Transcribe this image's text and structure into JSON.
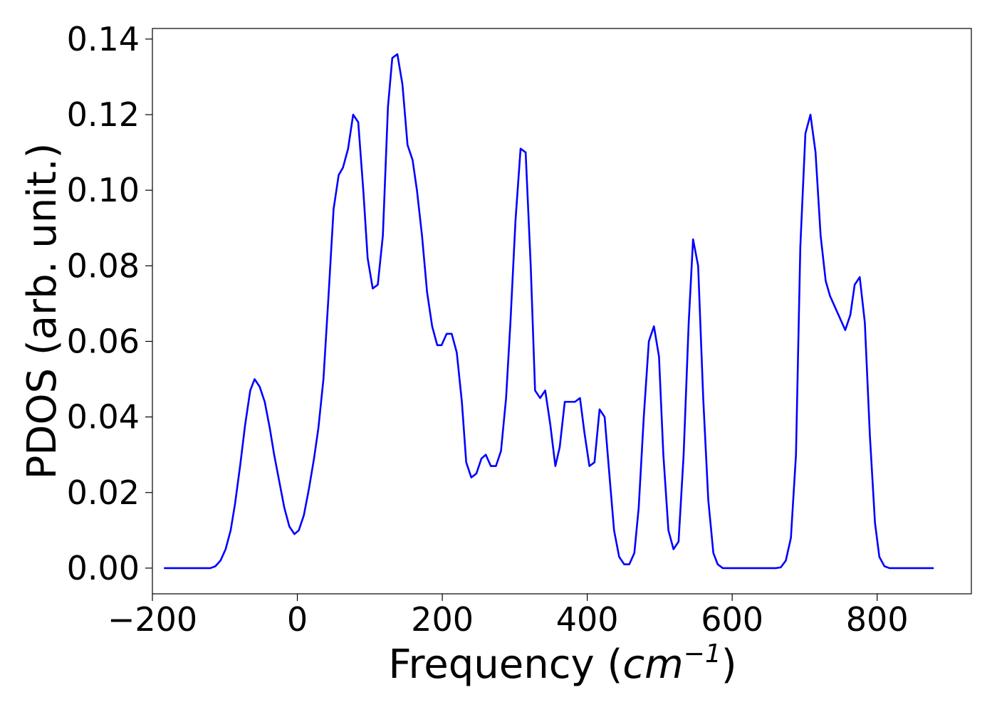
{
  "chart_data": {
    "type": "line",
    "title": "",
    "xlabel_prefix": "Frequency (",
    "xlabel_math": "cm",
    "xlabel_sup": "−1",
    "xlabel_suffix": ")",
    "ylabel": "PDOS (arb. unit.)",
    "xlim": [
      -200,
      930
    ],
    "ylim": [
      -0.0068,
      0.1428
    ],
    "xticks": [
      -200,
      0,
      200,
      400,
      600,
      800
    ],
    "xtick_labels": [
      "−200",
      "0",
      "200",
      "400",
      "600",
      "800"
    ],
    "yticks": [
      0.0,
      0.02,
      0.04,
      0.06,
      0.08,
      0.1,
      0.12,
      0.14
    ],
    "ytick_labels": [
      "0.00",
      "0.02",
      "0.04",
      "0.06",
      "0.08",
      "0.10",
      "0.12",
      "0.14"
    ],
    "grid": false,
    "series": [
      {
        "color": "#0000ff",
        "x": [
          -183,
          -120,
          -113,
          -106,
          -99,
          -92,
          -86,
          -79,
          -72,
          -65,
          -59,
          -52,
          -45,
          -38,
          -32,
          -25,
          -18,
          -11,
          -4,
          2,
          9,
          16,
          23,
          29,
          36,
          43,
          50,
          57,
          63,
          70,
          77,
          84,
          91,
          97,
          104,
          111,
          118,
          125,
          131,
          138,
          145,
          152,
          159,
          165,
          172,
          179,
          186,
          193,
          199,
          206,
          213,
          220,
          227,
          233,
          240,
          247,
          254,
          260,
          267,
          274,
          281,
          288,
          294,
          301,
          308,
          315,
          322,
          328,
          335,
          342,
          349,
          356,
          362,
          369,
          376,
          383,
          390,
          396,
          403,
          410,
          417,
          424,
          430,
          437,
          444,
          451,
          458,
          465,
          471,
          478,
          485,
          492,
          499,
          505,
          512,
          519,
          526,
          533,
          540,
          546,
          553,
          560,
          567,
          574,
          580,
          587,
          594,
          660,
          667,
          674,
          681,
          688,
          694,
          701,
          708,
          715,
          722,
          729,
          735,
          742,
          749,
          756,
          763,
          769,
          776,
          783,
          790,
          797,
          803,
          810,
          817,
          877
        ],
        "y": [
          0.0,
          0.0,
          0.0005,
          0.002,
          0.005,
          0.01,
          0.017,
          0.027,
          0.038,
          0.047,
          0.05,
          0.048,
          0.044,
          0.037,
          0.03,
          0.023,
          0.016,
          0.011,
          0.009,
          0.01,
          0.014,
          0.021,
          0.029,
          0.037,
          0.05,
          0.072,
          0.095,
          0.104,
          0.106,
          0.111,
          0.12,
          0.118,
          0.1,
          0.082,
          0.074,
          0.075,
          0.088,
          0.122,
          0.135,
          0.136,
          0.128,
          0.112,
          0.108,
          0.1,
          0.088,
          0.073,
          0.064,
          0.059,
          0.059,
          0.062,
          0.062,
          0.057,
          0.044,
          0.028,
          0.024,
          0.025,
          0.029,
          0.03,
          0.027,
          0.027,
          0.031,
          0.045,
          0.065,
          0.092,
          0.111,
          0.11,
          0.08,
          0.047,
          0.045,
          0.047,
          0.038,
          0.027,
          0.032,
          0.044,
          0.044,
          0.044,
          0.045,
          0.036,
          0.027,
          0.028,
          0.042,
          0.04,
          0.026,
          0.01,
          0.003,
          0.001,
          0.001,
          0.004,
          0.016,
          0.04,
          0.06,
          0.064,
          0.056,
          0.03,
          0.01,
          0.005,
          0.007,
          0.03,
          0.065,
          0.087,
          0.08,
          0.045,
          0.018,
          0.004,
          0.001,
          0.0,
          0.0,
          0.0,
          0.0002,
          0.002,
          0.008,
          0.03,
          0.085,
          0.115,
          0.12,
          0.11,
          0.088,
          0.076,
          0.072,
          0.069,
          0.066,
          0.063,
          0.067,
          0.075,
          0.077,
          0.065,
          0.035,
          0.012,
          0.003,
          0.0005,
          0.0,
          0.0
        ]
      }
    ]
  }
}
